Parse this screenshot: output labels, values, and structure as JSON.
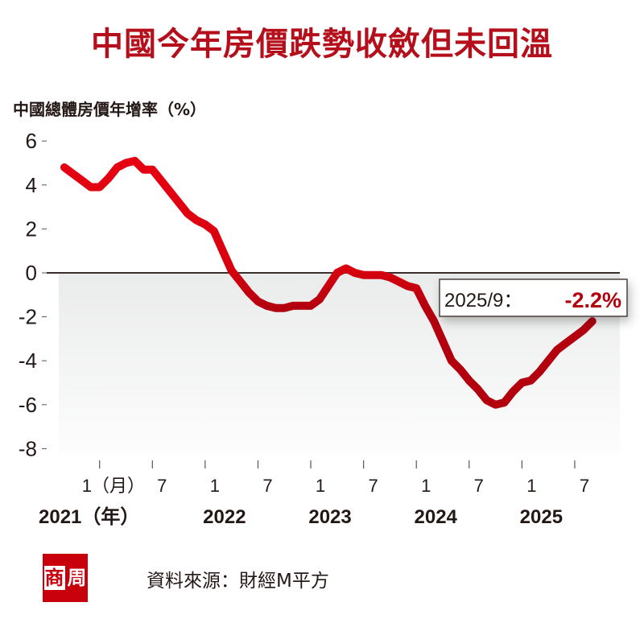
{
  "title": "中國今年房價跌勢收斂但未回溫",
  "source": "資料來源：財經M平方",
  "logo_text": [
    "商",
    "周"
  ],
  "colors": {
    "line_top": "#e60012",
    "line_bottom": "#b3000f",
    "title": "#b50f1c"
  },
  "chart_data": {
    "type": "line",
    "title": "中國今年房價跌勢收斂但未回溫",
    "ylabel": "中國總體房價年增率（%）",
    "xlabel": "",
    "ylim": [
      -8,
      6
    ],
    "yticks": [
      "6",
      "4",
      "2",
      "0",
      "-2",
      "-4",
      "-6",
      "-8"
    ],
    "ytick_values": [
      6,
      4,
      2,
      0,
      -2,
      -4,
      -6,
      -8
    ],
    "xtick_labels": [
      "1（月）",
      "7",
      "1",
      "7",
      "1",
      "7",
      "1",
      "7",
      "1",
      "7"
    ],
    "year_labels": [
      "2021（年）",
      "2022",
      "2023",
      "2024",
      "2025"
    ],
    "x_start": "2020-09",
    "x_end": "2025-09",
    "series": [
      {
        "name": "中國總體房價年增率",
        "values": [
          4.8,
          4.5,
          4.2,
          3.9,
          3.9,
          4.3,
          4.8,
          5.0,
          5.1,
          4.7,
          4.7,
          4.2,
          3.7,
          3.2,
          2.7,
          2.4,
          2.2,
          1.9,
          1.0,
          0.1,
          -0.4,
          -0.9,
          -1.3,
          -1.5,
          -1.6,
          -1.6,
          -1.5,
          -1.5,
          -1.5,
          -1.2,
          -0.6,
          0.0,
          0.2,
          0.0,
          -0.1,
          -0.1,
          -0.1,
          -0.2,
          -0.4,
          -0.6,
          -0.7,
          -1.5,
          -2.2,
          -3.1,
          -4.0,
          -4.4,
          -4.9,
          -5.3,
          -5.8,
          -6.0,
          -5.9,
          -5.4,
          -5.0,
          -4.9,
          -4.5,
          -4.0,
          -3.5,
          -3.2,
          -2.9,
          -2.6,
          -2.2
        ]
      }
    ],
    "annotation": {
      "date": "2025/9：",
      "value": "-2.2%"
    },
    "grid": false,
    "legend": "none"
  }
}
